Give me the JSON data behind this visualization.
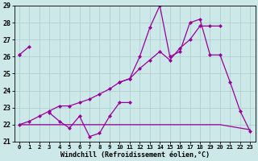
{
  "x": [
    0,
    1,
    2,
    3,
    4,
    5,
    6,
    7,
    8,
    9,
    10,
    11,
    12,
    13,
    14,
    15,
    16,
    17,
    18,
    19,
    20,
    21,
    22,
    23
  ],
  "line_zigzag": [
    26.1,
    26.6,
    null,
    22.7,
    22.2,
    21.8,
    22.5,
    21.3,
    21.5,
    22.5,
    23.3,
    23.3,
    null,
    null,
    null,
    null,
    null,
    null,
    null,
    null,
    null,
    null,
    null,
    null
  ],
  "line_up_right": [
    26.1,
    null,
    null,
    null,
    null,
    null,
    null,
    null,
    null,
    null,
    24.5,
    24.7,
    26.0,
    27.7,
    29.0,
    26.0,
    26.3,
    28.0,
    28.2,
    26.1,
    26.1,
    24.5,
    22.8,
    21.6
  ],
  "line_diagonal": [
    22.0,
    22.2,
    22.5,
    22.8,
    23.1,
    23.1,
    23.3,
    23.5,
    23.8,
    24.1,
    24.5,
    24.7,
    25.3,
    25.8,
    26.3,
    25.8,
    26.5,
    27.0,
    27.8,
    27.8,
    27.8,
    null,
    null,
    null
  ],
  "line_flat": [
    22.0,
    22.0,
    22.0,
    22.0,
    22.0,
    22.0,
    22.0,
    22.0,
    22.0,
    22.0,
    22.0,
    22.0,
    22.0,
    22.0,
    22.0,
    22.0,
    22.0,
    22.0,
    22.0,
    22.0,
    22.0,
    21.9,
    21.8,
    21.7
  ],
  "ylim_min": 21,
  "ylim_max": 29,
  "xlim_min": -0.5,
  "xlim_max": 23.5,
  "yticks": [
    21,
    22,
    23,
    24,
    25,
    26,
    27,
    28,
    29
  ],
  "xticks": [
    0,
    1,
    2,
    3,
    4,
    5,
    6,
    7,
    8,
    9,
    10,
    11,
    12,
    13,
    14,
    15,
    16,
    17,
    18,
    19,
    20,
    21,
    22,
    23
  ],
  "xlabel": "Windchill (Refroidissement éolien,°C)",
  "line_color": "#990099",
  "bg_color": "#cce8e8",
  "grid_color": "#aacccc"
}
